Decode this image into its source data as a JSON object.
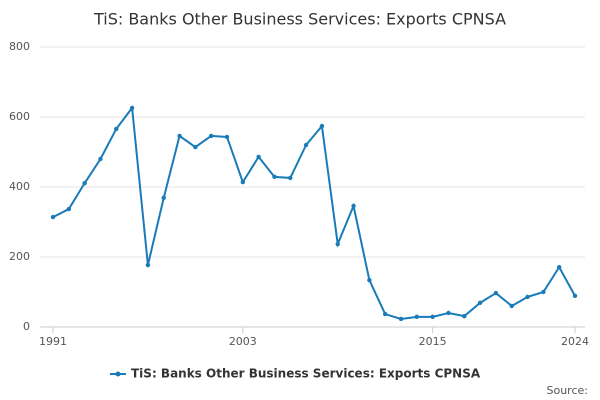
{
  "chart_data": {
    "type": "line",
    "title": "TiS: Banks Other Business Services: Exports CPNSA",
    "x": [
      1991,
      1992,
      1993,
      1994,
      1995,
      1996,
      1997,
      1998,
      1999,
      2000,
      2001,
      2002,
      2003,
      2004,
      2005,
      2006,
      2007,
      2008,
      2009,
      2010,
      2011,
      2012,
      2013,
      2014,
      2015,
      2016,
      2017,
      2018,
      2019,
      2020,
      2021,
      2022,
      2023,
      2024
    ],
    "series": [
      {
        "name": "TiS: Banks Other Business Services: Exports CPNSA",
        "color": "#1a7bb9",
        "values": [
          314,
          337,
          411,
          480,
          566,
          626,
          177,
          369,
          546,
          514,
          546,
          543,
          414,
          486,
          429,
          426,
          520,
          574,
          237,
          346,
          134,
          37,
          23,
          29,
          29,
          40,
          31,
          69,
          97,
          60,
          86,
          100,
          171,
          89
        ]
      }
    ],
    "xlim": [
      1991,
      2024
    ],
    "xticks": [
      1991,
      2003,
      2015,
      2024
    ],
    "ylim": [
      0,
      800
    ],
    "yticks": [
      0,
      200,
      400,
      600,
      800
    ],
    "grid": true,
    "legend": "bottom",
    "source": "Source:"
  }
}
